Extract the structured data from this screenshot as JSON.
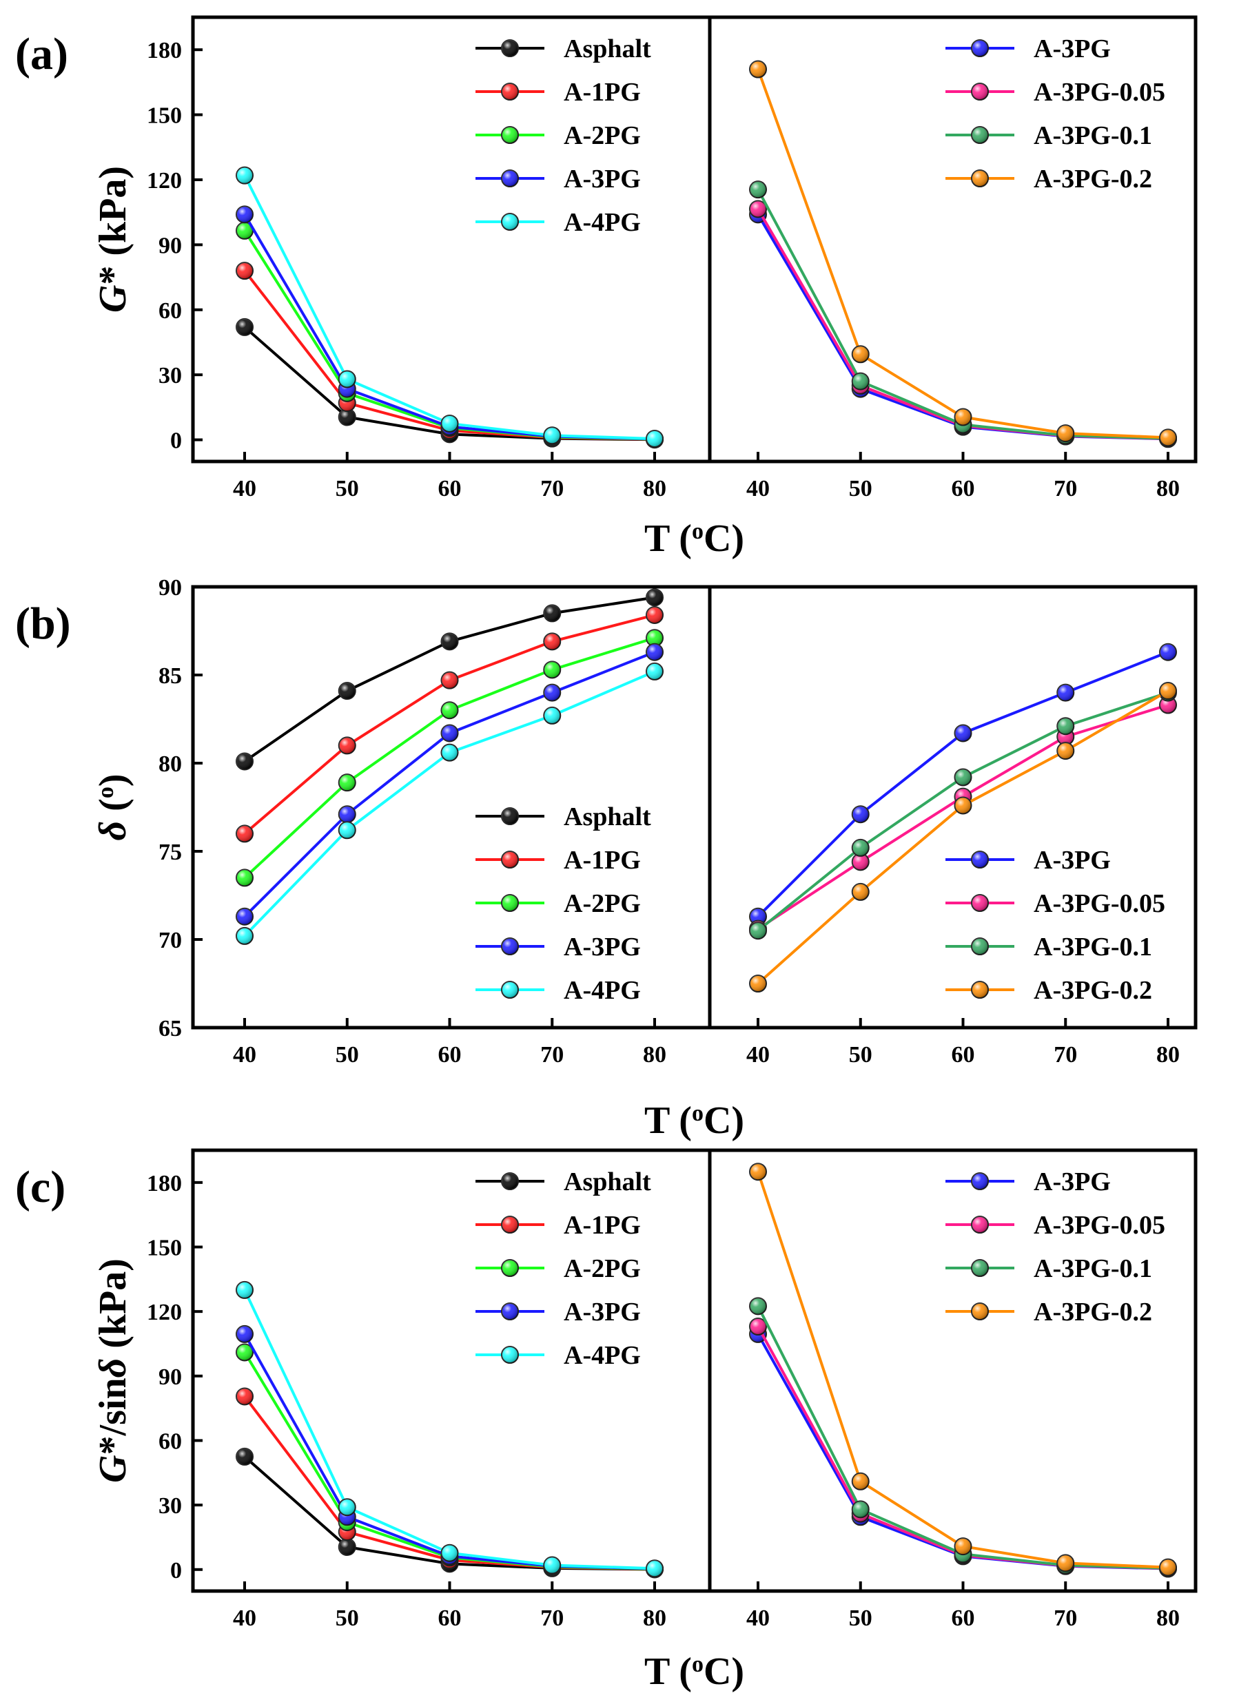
{
  "colors": {
    "Asphalt": "#000000",
    "A-1PG": "#ff1a1a",
    "A-2PG": "#1aff1a",
    "A-3PG": "#1a1aff",
    "A-4PG": "#1affff",
    "A-3PG-0.05": "#ff1a8c",
    "A-3PG-0.1": "#33a860",
    "A-3PG-0.2": "#ff8c00"
  },
  "chart_data": [
    {
      "type": "line",
      "panel_label": "(a)",
      "ylabel_italic": "G",
      "ylabel_rest": "* (kPa)",
      "xlabel_main": "T (",
      "xlabel_sup": "o",
      "xlabel_end": "C)",
      "categories": [
        "40",
        "50",
        "60",
        "70",
        "80"
      ],
      "x": [
        40,
        50,
        60,
        70,
        80
      ],
      "ylim": [
        -10,
        195
      ],
      "yticks": [
        0,
        30,
        60,
        90,
        120,
        150,
        180
      ],
      "subplots": [
        {
          "legend_position": "top-right",
          "series": [
            {
              "name": "Asphalt",
              "values": [
                52,
                10.5,
                2.6,
                0.6,
                0.1
              ]
            },
            {
              "name": "A-1PG",
              "values": [
                78,
                17,
                4.3,
                1.0,
                0.2
              ]
            },
            {
              "name": "A-2PG",
              "values": [
                96.5,
                21.5,
                5.5,
                1.3,
                0.3
              ]
            },
            {
              "name": "A-3PG",
              "values": [
                104,
                23.5,
                6.0,
                1.6,
                0.4
              ]
            },
            {
              "name": "A-4PG",
              "values": [
                122,
                28,
                7.5,
                2.0,
                0.5
              ]
            }
          ]
        },
        {
          "legend_position": "top-right",
          "series": [
            {
              "name": "A-3PG",
              "values": [
                104,
                23.5,
                6.0,
                1.6,
                0.4
              ]
            },
            {
              "name": "A-3PG-0.05",
              "values": [
                106.5,
                25,
                6.5,
                1.8,
                0.5
              ]
            },
            {
              "name": "A-3PG-0.1",
              "values": [
                115.5,
                27,
                7.0,
                2.0,
                0.6
              ]
            },
            {
              "name": "A-3PG-0.2",
              "values": [
                171,
                39.5,
                10.5,
                3.0,
                1.0
              ]
            }
          ]
        }
      ]
    },
    {
      "type": "line",
      "panel_label": "(b)",
      "ylabel_italic": "δ",
      "ylabel_rest": " (",
      "ylabel_sup": "o",
      "ylabel_end": ")",
      "xlabel_main": "T (",
      "xlabel_sup": "o",
      "xlabel_end": "C)",
      "categories": [
        "40",
        "50",
        "60",
        "70",
        "80"
      ],
      "x": [
        40,
        50,
        60,
        70,
        80
      ],
      "ylim": [
        65,
        90
      ],
      "yticks": [
        65,
        70,
        75,
        80,
        85,
        90
      ],
      "subplots": [
        {
          "legend_position": "bottom-right",
          "series": [
            {
              "name": "Asphalt",
              "values": [
                80.1,
                84.1,
                86.9,
                88.5,
                89.4
              ]
            },
            {
              "name": "A-1PG",
              "values": [
                76.0,
                81.0,
                84.7,
                86.9,
                88.4
              ]
            },
            {
              "name": "A-2PG",
              "values": [
                73.5,
                78.9,
                83.0,
                85.3,
                87.1
              ]
            },
            {
              "name": "A-3PG",
              "values": [
                71.3,
                77.1,
                81.7,
                84.0,
                86.3
              ]
            },
            {
              "name": "A-4PG",
              "values": [
                70.2,
                76.2,
                80.6,
                82.7,
                85.2
              ]
            }
          ]
        },
        {
          "legend_position": "bottom-right",
          "series": [
            {
              "name": "A-3PG",
              "values": [
                71.3,
                77.1,
                81.7,
                84.0,
                86.3
              ]
            },
            {
              "name": "A-3PG-0.05",
              "values": [
                70.6,
                74.4,
                78.1,
                81.5,
                83.3
              ]
            },
            {
              "name": "A-3PG-0.1",
              "values": [
                70.5,
                75.2,
                79.2,
                82.1,
                84.0
              ]
            },
            {
              "name": "A-3PG-0.2",
              "values": [
                67.5,
                72.7,
                77.6,
                80.7,
                84.1
              ]
            }
          ]
        }
      ]
    },
    {
      "type": "line",
      "panel_label": "(c)",
      "ylabel_italic": "G",
      "ylabel_rest": "*/sin",
      "ylabel_italic2": "δ",
      "ylabel_end": " (kPa)",
      "xlabel_main": "T (",
      "xlabel_sup": "o",
      "xlabel_end": "C)",
      "categories": [
        "40",
        "50",
        "60",
        "70",
        "80"
      ],
      "x": [
        40,
        50,
        60,
        70,
        80
      ],
      "ylim": [
        -10,
        195
      ],
      "yticks": [
        0,
        30,
        60,
        90,
        120,
        150,
        180
      ],
      "subplots": [
        {
          "legend_position": "top-right",
          "series": [
            {
              "name": "Asphalt",
              "values": [
                52.5,
                10.5,
                2.7,
                0.6,
                0.1
              ]
            },
            {
              "name": "A-1PG",
              "values": [
                80.5,
                17.5,
                4.4,
                1.0,
                0.2
              ]
            },
            {
              "name": "A-2PG",
              "values": [
                101,
                22,
                5.6,
                1.3,
                0.3
              ]
            },
            {
              "name": "A-3PG",
              "values": [
                109.5,
                24.5,
                6.2,
                1.6,
                0.4
              ]
            },
            {
              "name": "A-4PG",
              "values": [
                130,
                29,
                7.7,
                2.0,
                0.5
              ]
            }
          ]
        },
        {
          "legend_position": "top-right",
          "series": [
            {
              "name": "A-3PG",
              "values": [
                109.5,
                24.5,
                6.2,
                1.6,
                0.4
              ]
            },
            {
              "name": "A-3PG-0.05",
              "values": [
                113,
                26,
                6.6,
                1.8,
                0.5
              ]
            },
            {
              "name": "A-3PG-0.1",
              "values": [
                122.5,
                28,
                7.2,
                2.0,
                0.6
              ]
            },
            {
              "name": "A-3PG-0.2",
              "values": [
                185,
                41,
                10.8,
                3.0,
                1.0
              ]
            }
          ]
        }
      ]
    }
  ]
}
